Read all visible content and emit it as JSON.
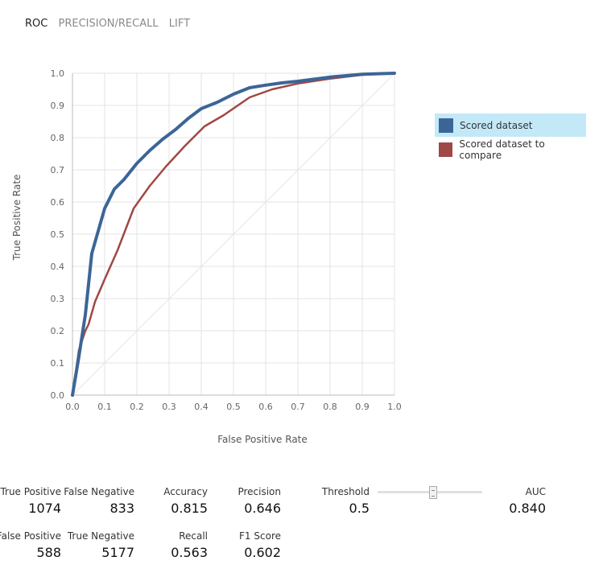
{
  "tabs": [
    {
      "label": "ROC",
      "active": true
    },
    {
      "label": "PRECISION/RECALL",
      "active": false
    },
    {
      "label": "LIFT",
      "active": false
    }
  ],
  "chart_data": {
    "type": "line",
    "title": "",
    "xlabel": "False Positive Rate",
    "ylabel": "True Positive Rate",
    "xlim": [
      0,
      1
    ],
    "ylim": [
      0,
      1
    ],
    "ticks": [
      "0.0",
      "0.1",
      "0.2",
      "0.3",
      "0.4",
      "0.5",
      "0.6",
      "0.7",
      "0.8",
      "0.9",
      "1.0"
    ],
    "grid": true,
    "diagonal_reference": true,
    "legend_position": "right",
    "series": [
      {
        "name": "Scored dataset",
        "color": "#3c6597",
        "points": [
          [
            0,
            0
          ],
          [
            0.02,
            0.12
          ],
          [
            0.04,
            0.25
          ],
          [
            0.06,
            0.44
          ],
          [
            0.08,
            0.51
          ],
          [
            0.1,
            0.58
          ],
          [
            0.13,
            0.64
          ],
          [
            0.16,
            0.67
          ],
          [
            0.2,
            0.72
          ],
          [
            0.24,
            0.76
          ],
          [
            0.28,
            0.795
          ],
          [
            0.32,
            0.825
          ],
          [
            0.36,
            0.86
          ],
          [
            0.4,
            0.89
          ],
          [
            0.45,
            0.91
          ],
          [
            0.5,
            0.935
          ],
          [
            0.55,
            0.955
          ],
          [
            0.6,
            0.963
          ],
          [
            0.65,
            0.97
          ],
          [
            0.7,
            0.975
          ],
          [
            0.8,
            0.988
          ],
          [
            0.9,
            0.997
          ],
          [
            1,
            1
          ]
        ]
      },
      {
        "name": "Scored dataset to compare",
        "color": "#a04845",
        "points": [
          [
            0,
            0
          ],
          [
            0.02,
            0.14
          ],
          [
            0.04,
            0.2
          ],
          [
            0.05,
            0.22
          ],
          [
            0.07,
            0.29
          ],
          [
            0.1,
            0.36
          ],
          [
            0.14,
            0.45
          ],
          [
            0.19,
            0.58
          ],
          [
            0.24,
            0.65
          ],
          [
            0.29,
            0.71
          ],
          [
            0.35,
            0.775
          ],
          [
            0.41,
            0.835
          ],
          [
            0.47,
            0.87
          ],
          [
            0.55,
            0.925
          ],
          [
            0.62,
            0.95
          ],
          [
            0.7,
            0.968
          ],
          [
            0.8,
            0.983
          ],
          [
            0.9,
            0.995
          ],
          [
            1,
            1
          ]
        ]
      }
    ]
  },
  "metrics": {
    "true_positive": {
      "label": "True Positive",
      "value": "1074"
    },
    "false_negative": {
      "label": "False Negative",
      "value": "833"
    },
    "accuracy": {
      "label": "Accuracy",
      "value": "0.815"
    },
    "precision": {
      "label": "Precision",
      "value": "0.646"
    },
    "threshold": {
      "label": "Threshold",
      "value": "0.5"
    },
    "auc": {
      "label": "AUC",
      "value": "0.840"
    },
    "false_positive": {
      "label": "False Positive",
      "value": "588"
    },
    "true_negative": {
      "label": "True Negative",
      "value": "5177"
    },
    "recall": {
      "label": "Recall",
      "value": "0.563"
    },
    "f1_score": {
      "label": "F1 Score",
      "value": "0.602"
    }
  },
  "threshold_slider": {
    "value": 0.5
  }
}
